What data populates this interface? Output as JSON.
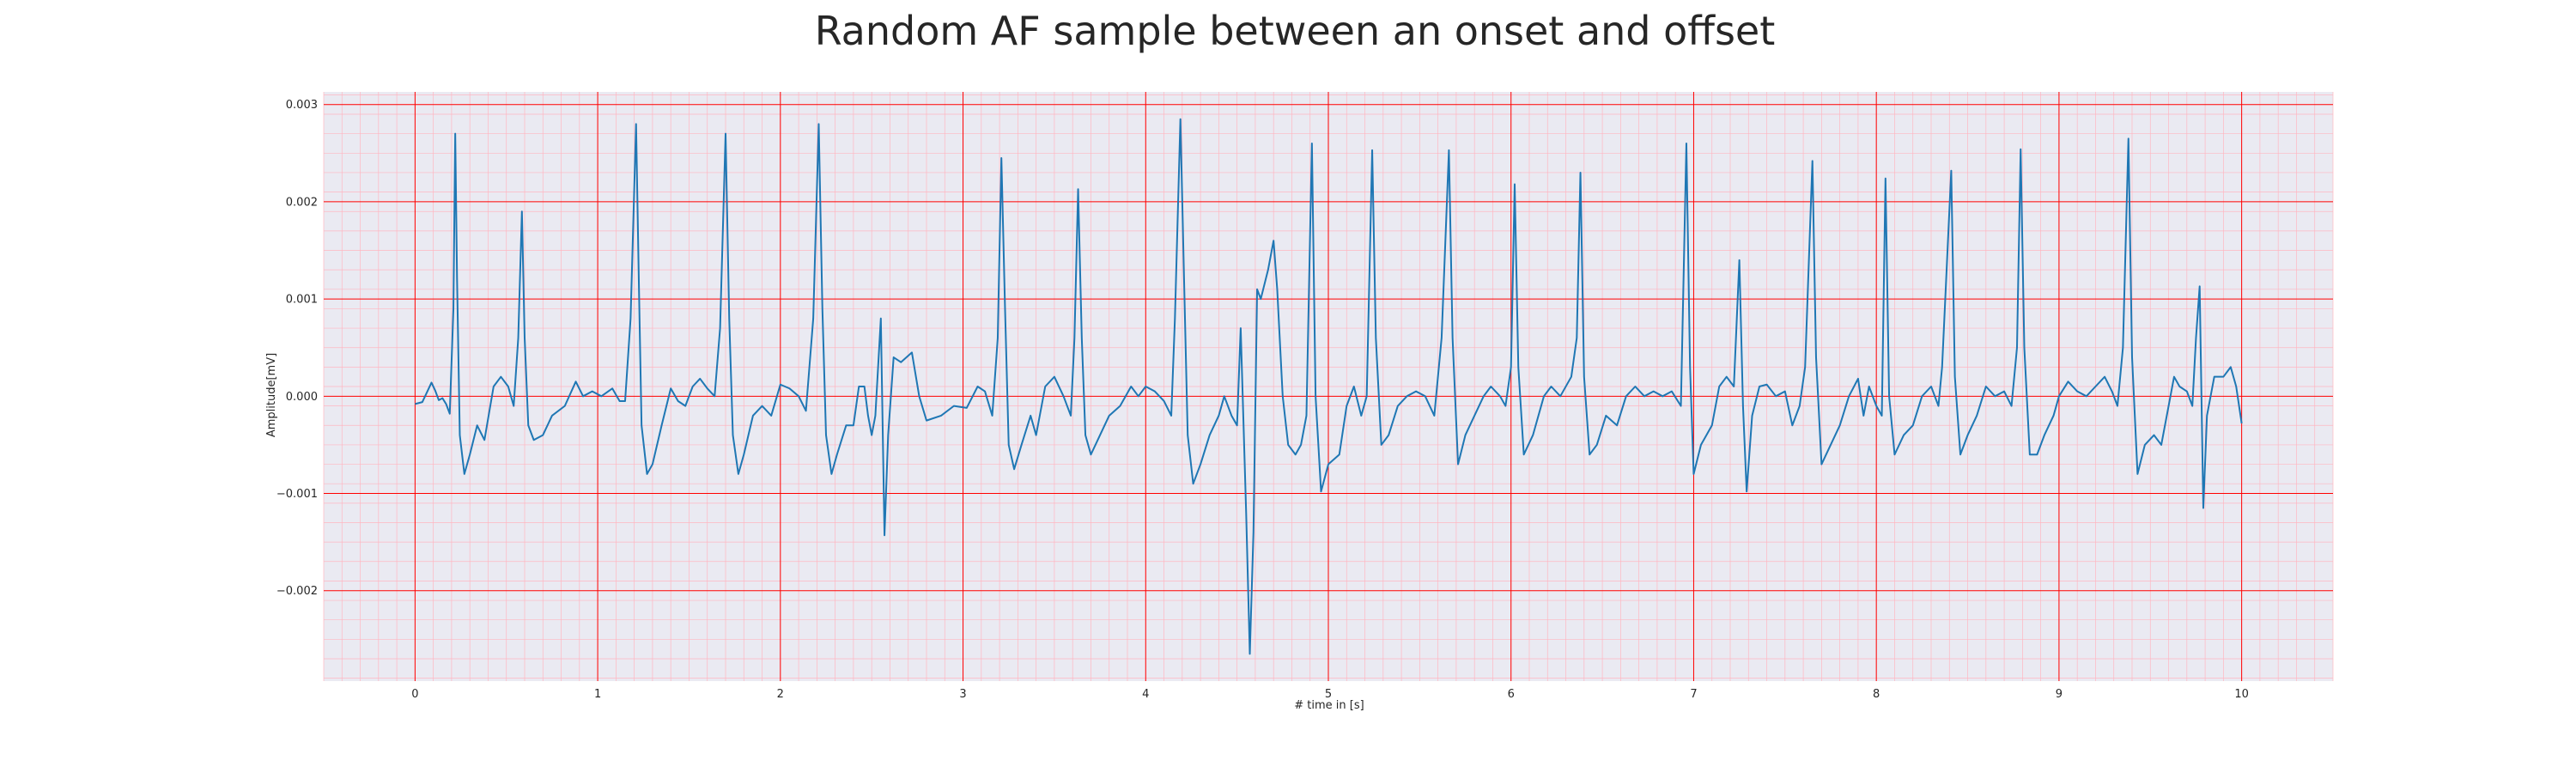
{
  "chart_data": {
    "type": "line",
    "title": "Random AF sample between an onset and offset",
    "xlabel": "# time in [s]",
    "ylabel": "Amplitude[mV]",
    "xlim": [
      -0.5,
      10.5
    ],
    "ylim": [
      -0.00293,
      0.00313
    ],
    "xticks": [
      0,
      1,
      2,
      3,
      4,
      5,
      6,
      7,
      8,
      9,
      10
    ],
    "xtick_labels": [
      "0",
      "1",
      "2",
      "3",
      "4",
      "5",
      "6",
      "7",
      "8",
      "9",
      "10"
    ],
    "yticks": [
      -0.002,
      -0.001,
      0.0,
      0.001,
      0.002,
      0.003
    ],
    "ytick_labels": [
      "−0.002",
      "−0.001",
      "0.000",
      "0.001",
      "0.002",
      "0.003"
    ],
    "grid": true,
    "minor_grid": true,
    "legend": "none",
    "colors": {
      "background": "#eaeaf2",
      "major_grid": "#ff0000",
      "minor_grid": "#ffb6c1",
      "line": "#1f77b4"
    },
    "series": [
      {
        "color": "#1f77b4",
        "points": [
          [
            0.0,
            -8e-05
          ],
          [
            0.04,
            -6e-05
          ],
          [
            0.07,
            6e-05
          ],
          [
            0.09,
            0.00014
          ],
          [
            0.11,
            6e-05
          ],
          [
            0.13,
            -4e-05
          ],
          [
            0.15,
            -2e-05
          ],
          [
            0.17,
            -8e-05
          ],
          [
            0.19,
            -0.00018
          ],
          [
            0.21,
            0.0009
          ],
          [
            0.22,
            0.0027
          ],
          [
            0.23,
            0.0012
          ],
          [
            0.245,
            -0.0004
          ],
          [
            0.27,
            -0.0008
          ],
          [
            0.3,
            -0.0006
          ],
          [
            0.34,
            -0.0003
          ],
          [
            0.38,
            -0.00045
          ],
          [
            0.43,
            0.0001
          ],
          [
            0.47,
            0.0002
          ],
          [
            0.51,
            0.0001
          ],
          [
            0.54,
            -0.0001
          ],
          [
            0.565,
            0.0006
          ],
          [
            0.585,
            0.0019
          ],
          [
            0.6,
            0.0006
          ],
          [
            0.62,
            -0.0003
          ],
          [
            0.65,
            -0.00045
          ],
          [
            0.7,
            -0.0004
          ],
          [
            0.75,
            -0.0002
          ],
          [
            0.82,
            -0.0001
          ],
          [
            0.88,
            0.00015
          ],
          [
            0.92,
            0.0
          ],
          [
            0.97,
            5e-05
          ],
          [
            1.02,
            0.0
          ],
          [
            1.08,
            8e-05
          ],
          [
            1.12,
            -5e-05
          ],
          [
            1.15,
            -5e-05
          ],
          [
            1.18,
            0.0008
          ],
          [
            1.21,
            0.0028
          ],
          [
            1.225,
            0.0012
          ],
          [
            1.24,
            -0.0003
          ],
          [
            1.27,
            -0.0008
          ],
          [
            1.3,
            -0.0007
          ],
          [
            1.35,
            -0.0003
          ],
          [
            1.4,
            8e-05
          ],
          [
            1.44,
            -5e-05
          ],
          [
            1.48,
            -0.0001
          ],
          [
            1.52,
            0.0001
          ],
          [
            1.56,
            0.00018
          ],
          [
            1.6,
            8e-05
          ],
          [
            1.64,
            0.0
          ],
          [
            1.67,
            0.0007
          ],
          [
            1.7,
            0.0027
          ],
          [
            1.72,
            0.0008
          ],
          [
            1.74,
            -0.0004
          ],
          [
            1.77,
            -0.0008
          ],
          [
            1.8,
            -0.0006
          ],
          [
            1.85,
            -0.0002
          ],
          [
            1.9,
            -0.0001
          ],
          [
            1.95,
            -0.0002
          ],
          [
            2.0,
            0.00012
          ],
          [
            2.05,
            8e-05
          ],
          [
            2.1,
            0.0
          ],
          [
            2.14,
            -0.00015
          ],
          [
            2.18,
            0.0008
          ],
          [
            2.21,
            0.0028
          ],
          [
            2.23,
            0.0009
          ],
          [
            2.25,
            -0.0004
          ],
          [
            2.28,
            -0.0008
          ],
          [
            2.31,
            -0.0006
          ],
          [
            2.36,
            -0.0003
          ],
          [
            2.4,
            -0.0003
          ],
          [
            2.43,
            0.0001
          ],
          [
            2.46,
            0.0001
          ],
          [
            2.48,
            -0.0002
          ],
          [
            2.5,
            -0.0004
          ],
          [
            2.52,
            -0.0002
          ],
          [
            2.55,
            0.0008
          ],
          [
            2.57,
            -0.00143
          ],
          [
            2.59,
            -0.0004
          ],
          [
            2.62,
            0.0004
          ],
          [
            2.66,
            0.00035
          ],
          [
            2.72,
            0.00045
          ],
          [
            2.76,
            0.0
          ],
          [
            2.8,
            -0.00025
          ],
          [
            2.88,
            -0.0002
          ],
          [
            2.95,
            -0.0001
          ],
          [
            3.02,
            -0.00012
          ],
          [
            3.08,
            0.0001
          ],
          [
            3.12,
            5e-05
          ],
          [
            3.16,
            -0.0002
          ],
          [
            3.19,
            0.0006
          ],
          [
            3.21,
            0.00245
          ],
          [
            3.23,
            0.0009
          ],
          [
            3.25,
            -0.0005
          ],
          [
            3.28,
            -0.00075
          ],
          [
            3.32,
            -0.0005
          ],
          [
            3.37,
            -0.0002
          ],
          [
            3.4,
            -0.0004
          ],
          [
            3.45,
            0.0001
          ],
          [
            3.5,
            0.0002
          ],
          [
            3.55,
            0.0
          ],
          [
            3.59,
            -0.0002
          ],
          [
            3.61,
            0.0006
          ],
          [
            3.63,
            0.00213
          ],
          [
            3.65,
            0.0006
          ],
          [
            3.67,
            -0.0004
          ],
          [
            3.7,
            -0.0006
          ],
          [
            3.75,
            -0.0004
          ],
          [
            3.8,
            -0.0002
          ],
          [
            3.86,
            -0.0001
          ],
          [
            3.92,
            0.0001
          ],
          [
            3.96,
            0.0
          ],
          [
            4.0,
            0.0001
          ],
          [
            4.05,
            5e-05
          ],
          [
            4.1,
            -5e-05
          ],
          [
            4.14,
            -0.0002
          ],
          [
            4.16,
            0.0008
          ],
          [
            4.19,
            0.00285
          ],
          [
            4.21,
            0.0012
          ],
          [
            4.23,
            -0.0004
          ],
          [
            4.26,
            -0.0009
          ],
          [
            4.3,
            -0.0007
          ],
          [
            4.35,
            -0.0004
          ],
          [
            4.4,
            -0.0002
          ],
          [
            4.43,
            0.0
          ],
          [
            4.47,
            -0.0002
          ],
          [
            4.5,
            -0.0003
          ],
          [
            4.52,
            0.0007
          ],
          [
            4.55,
            -0.0012
          ],
          [
            4.57,
            -0.00265
          ],
          [
            4.59,
            -0.0014
          ],
          [
            4.61,
            0.0011
          ],
          [
            4.63,
            0.001
          ],
          [
            4.67,
            0.0013
          ],
          [
            4.7,
            0.0016
          ],
          [
            4.72,
            0.0011
          ],
          [
            4.75,
            0.0
          ],
          [
            4.78,
            -0.0005
          ],
          [
            4.82,
            -0.0006
          ],
          [
            4.85,
            -0.0005
          ],
          [
            4.88,
            -0.0002
          ],
          [
            4.91,
            0.0026
          ],
          [
            4.93,
            0.0
          ],
          [
            4.96,
            -0.00098
          ],
          [
            5.0,
            -0.0007
          ],
          [
            5.06,
            -0.0006
          ],
          [
            5.1,
            -0.0001
          ],
          [
            5.14,
            0.0001
          ],
          [
            5.18,
            -0.0002
          ],
          [
            5.21,
            0.0
          ],
          [
            5.24,
            0.00253
          ],
          [
            5.26,
            0.0006
          ],
          [
            5.29,
            -0.0005
          ],
          [
            5.33,
            -0.0004
          ],
          [
            5.38,
            -0.0001
          ],
          [
            5.43,
            0.0
          ],
          [
            5.48,
            5e-05
          ],
          [
            5.53,
            0.0
          ],
          [
            5.58,
            -0.0002
          ],
          [
            5.62,
            0.0006
          ],
          [
            5.66,
            0.00253
          ],
          [
            5.68,
            0.0006
          ],
          [
            5.71,
            -0.0007
          ],
          [
            5.75,
            -0.0004
          ],
          [
            5.8,
            -0.0002
          ],
          [
            5.85,
            0.0
          ],
          [
            5.89,
            0.0001
          ],
          [
            5.94,
            0.0
          ],
          [
            5.97,
            -0.0001
          ],
          [
            6.0,
            0.0003
          ],
          [
            6.02,
            0.00218
          ],
          [
            6.04,
            0.0003
          ],
          [
            6.07,
            -0.0006
          ],
          [
            6.12,
            -0.0004
          ],
          [
            6.18,
            0.0
          ],
          [
            6.22,
            0.0001
          ],
          [
            6.27,
            0.0
          ],
          [
            6.33,
            0.0002
          ],
          [
            6.36,
            0.0006
          ],
          [
            6.38,
            0.0023
          ],
          [
            6.4,
            0.0002
          ],
          [
            6.43,
            -0.0006
          ],
          [
            6.47,
            -0.0005
          ],
          [
            6.52,
            -0.0002
          ],
          [
            6.58,
            -0.0003
          ],
          [
            6.63,
            0.0
          ],
          [
            6.68,
            0.0001
          ],
          [
            6.73,
            0.0
          ],
          [
            6.78,
            5e-05
          ],
          [
            6.83,
            0.0
          ],
          [
            6.88,
            5e-05
          ],
          [
            6.93,
            -0.0001
          ],
          [
            6.96,
            0.0026
          ],
          [
            6.98,
            0.0003
          ],
          [
            7.0,
            -0.0008
          ],
          [
            7.04,
            -0.0005
          ],
          [
            7.1,
            -0.0003
          ],
          [
            7.14,
            0.0001
          ],
          [
            7.18,
            0.0002
          ],
          [
            7.22,
            0.0001
          ],
          [
            7.25,
            0.0014
          ],
          [
            7.27,
            -0.0001
          ],
          [
            7.29,
            -0.00098
          ],
          [
            7.32,
            -0.0002
          ],
          [
            7.36,
            0.0001
          ],
          [
            7.4,
            0.00012
          ],
          [
            7.45,
            0.0
          ],
          [
            7.5,
            5e-05
          ],
          [
            7.54,
            -0.0003
          ],
          [
            7.58,
            -0.0001
          ],
          [
            7.61,
            0.0003
          ],
          [
            7.65,
            0.00242
          ],
          [
            7.67,
            0.0004
          ],
          [
            7.7,
            -0.0007
          ],
          [
            7.75,
            -0.0005
          ],
          [
            7.8,
            -0.0003
          ],
          [
            7.85,
            0.0
          ],
          [
            7.9,
            0.00018
          ],
          [
            7.93,
            -0.0002
          ],
          [
            7.96,
            0.0001
          ],
          [
            8.0,
            -0.0001
          ],
          [
            8.03,
            -0.0002
          ],
          [
            8.05,
            0.00224
          ],
          [
            8.07,
            0.0
          ],
          [
            8.1,
            -0.0006
          ],
          [
            8.15,
            -0.0004
          ],
          [
            8.2,
            -0.0003
          ],
          [
            8.25,
            0.0
          ],
          [
            8.3,
            0.0001
          ],
          [
            8.34,
            -0.0001
          ],
          [
            8.36,
            0.0003
          ],
          [
            8.41,
            0.00232
          ],
          [
            8.43,
            0.0002
          ],
          [
            8.46,
            -0.0006
          ],
          [
            8.5,
            -0.0004
          ],
          [
            8.55,
            -0.0002
          ],
          [
            8.6,
            0.0001
          ],
          [
            8.65,
            0.0
          ],
          [
            8.7,
            5e-05
          ],
          [
            8.74,
            -0.0001
          ],
          [
            8.77,
            0.0005
          ],
          [
            8.79,
            0.00254
          ],
          [
            8.81,
            0.0005
          ],
          [
            8.84,
            -0.0006
          ],
          [
            8.88,
            -0.0006
          ],
          [
            8.92,
            -0.0004
          ],
          [
            8.97,
            -0.0002
          ],
          [
            9.0,
            0.0
          ],
          [
            9.05,
            0.00015
          ],
          [
            9.1,
            5e-05
          ],
          [
            9.15,
            0.0
          ],
          [
            9.2,
            0.0001
          ],
          [
            9.25,
            0.0002
          ],
          [
            9.29,
            5e-05
          ],
          [
            9.32,
            -0.0001
          ],
          [
            9.35,
            0.0005
          ],
          [
            9.38,
            0.00265
          ],
          [
            9.4,
            0.0004
          ],
          [
            9.43,
            -0.0008
          ],
          [
            9.47,
            -0.0005
          ],
          [
            9.52,
            -0.0004
          ],
          [
            9.56,
            -0.0005
          ],
          [
            9.6,
            -0.0001
          ],
          [
            9.63,
            0.0002
          ],
          [
            9.66,
            0.0001
          ],
          [
            9.7,
            5e-05
          ],
          [
            9.73,
            -0.0001
          ],
          [
            9.75,
            0.0006
          ],
          [
            9.77,
            0.00113
          ],
          [
            9.79,
            -0.00115
          ],
          [
            9.81,
            -0.0002
          ],
          [
            9.85,
            0.0002
          ],
          [
            9.9,
            0.0002
          ],
          [
            9.94,
            0.0003
          ],
          [
            9.97,
            0.0001
          ],
          [
            10.0,
            -0.00028
          ]
        ]
      }
    ]
  }
}
